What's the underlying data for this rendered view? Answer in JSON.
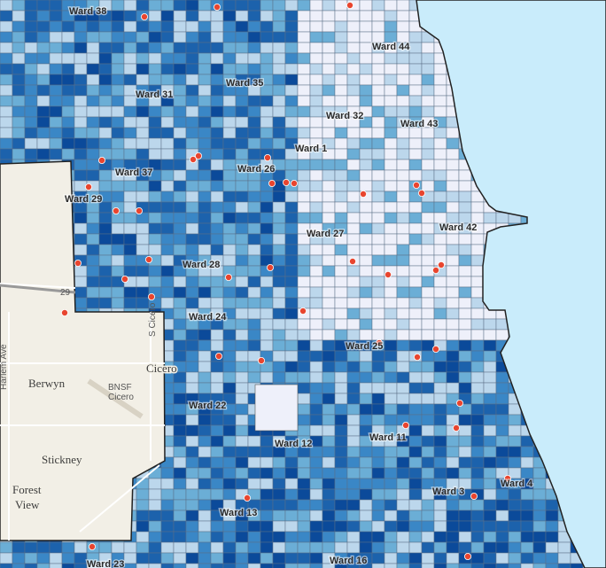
{
  "map": {
    "ward_labels": [
      "Ward 38",
      "Ward 44",
      "Ward 31",
      "Ward 35",
      "Ward 32",
      "Ward 43",
      "Ward 1",
      "Ward 37",
      "Ward 26",
      "Ward 29",
      "Ward 42",
      "Ward 27",
      "Ward 28",
      "Ward 24",
      "Ward 25",
      "Ward 22",
      "Ward 11",
      "Ward 12",
      "Ward 3",
      "Ward 4",
      "Ward 13",
      "Ward 23",
      "Ward 16"
    ],
    "place_labels": [
      "Berwyn",
      "Stickney",
      "Forest",
      "View",
      "Cicero",
      "BNSF",
      "Cicero",
      "Harlem Ave",
      "S Cicero",
      "29"
    ]
  }
}
